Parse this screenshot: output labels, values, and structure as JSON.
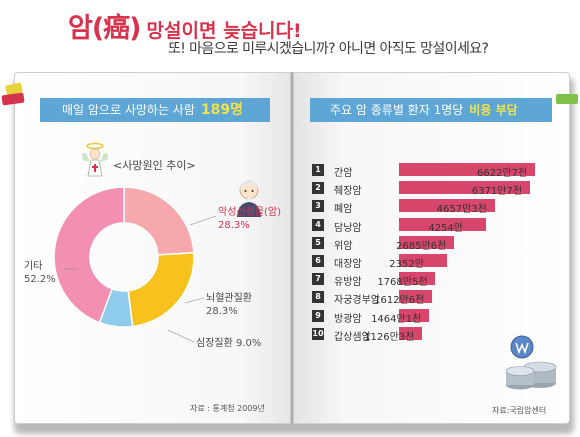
{
  "header": {
    "title": "암(癌) 망설이면 늦습니다!",
    "title_main": "암(癌)",
    "title_tag": "망설이면 늦습니다!",
    "subtitle": "또! 마음으로 미루시겠습니까? 아니면 아직도 망설이세요?"
  },
  "left_page": {
    "banner_text": "매일 암으로 사망하는 사람",
    "banner_number": "189명",
    "chart_title": "<사망원인 추이>",
    "source": "자료 : 통계청 2009년"
  },
  "right_page": {
    "banner_text": "주요 암 종류별 환자 1명당",
    "banner_highlight": "비용 부담",
    "source": "자료:국립암센터"
  },
  "colors": {
    "accent_red": "#d8334d",
    "banner_blue": "#5ea6d5",
    "bar_pink": "#d9466b",
    "pie_pink": "#f48fb4",
    "pie_light_pink": "#f7a8ad",
    "pie_yellow": "#f7c21e",
    "pie_blue": "#8fcbed"
  },
  "chart_data": [
    {
      "type": "pie",
      "title": "<사망원인 추이>",
      "slices": [
        {
          "label": "악성신생물(암)",
          "value": 28.3,
          "display": "28.3%",
          "color": "#f7a8ad"
        },
        {
          "label": "뇌혈관질환",
          "value": 28.3,
          "display": "28.3%",
          "color": "#f7c21e"
        },
        {
          "label": "심장질환",
          "value": 9.0,
          "display": "9.0%",
          "color": "#8fcbed"
        },
        {
          "label": "기타",
          "value": 52.2,
          "display": "52.2%",
          "color": "#f48fb4"
        }
      ]
    },
    {
      "type": "bar",
      "title": "주요 암 종류별 환자 1명당 비용 부담",
      "categories": [
        "간암",
        "췌장암",
        "폐암",
        "담낭암",
        "위암",
        "대장암",
        "유방암",
        "자궁경부암",
        "방광암",
        "갑상샘암"
      ],
      "ranks": [
        "1",
        "2",
        "3",
        "4",
        "5",
        "6",
        "7",
        "8",
        "9",
        "10"
      ],
      "values": [
        6622.7,
        6371.7,
        4657.3,
        4254,
        2685.6,
        2352,
        1768.5,
        1612.6,
        1464.1,
        1126.3
      ],
      "value_labels": [
        "6622만7천",
        "6371만7천",
        "4657만3천",
        "4254만",
        "2685만6천",
        "2352만",
        "1768만5천",
        "1612만6천",
        "1464만1천",
        "1126만3천"
      ],
      "unit": "만원"
    }
  ]
}
